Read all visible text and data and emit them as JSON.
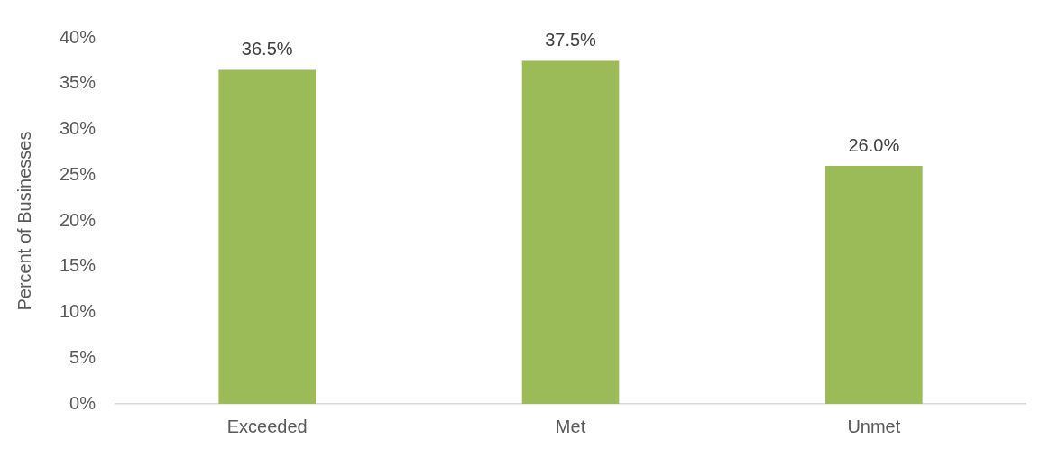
{
  "chart_data": {
    "type": "bar",
    "ylabel": "Percent of Businesses",
    "categories": [
      "Exceeded",
      "Met",
      "Unmet"
    ],
    "values": [
      36.5,
      37.5,
      26.0
    ],
    "value_labels": [
      "36.5%",
      "37.5%",
      "26.0%"
    ],
    "color": "#9bbb59",
    "ylim": [
      0,
      40
    ],
    "yticks": [
      {
        "value": 0,
        "label": "0%"
      },
      {
        "value": 5,
        "label": "5%"
      },
      {
        "value": 10,
        "label": "10%"
      },
      {
        "value": 15,
        "label": "15%"
      },
      {
        "value": 20,
        "label": "20%"
      },
      {
        "value": 25,
        "label": "25%"
      },
      {
        "value": 30,
        "label": "30%"
      },
      {
        "value": 35,
        "label": "35%"
      },
      {
        "value": 40,
        "label": "40%"
      }
    ],
    "grid": false,
    "legend": false
  }
}
